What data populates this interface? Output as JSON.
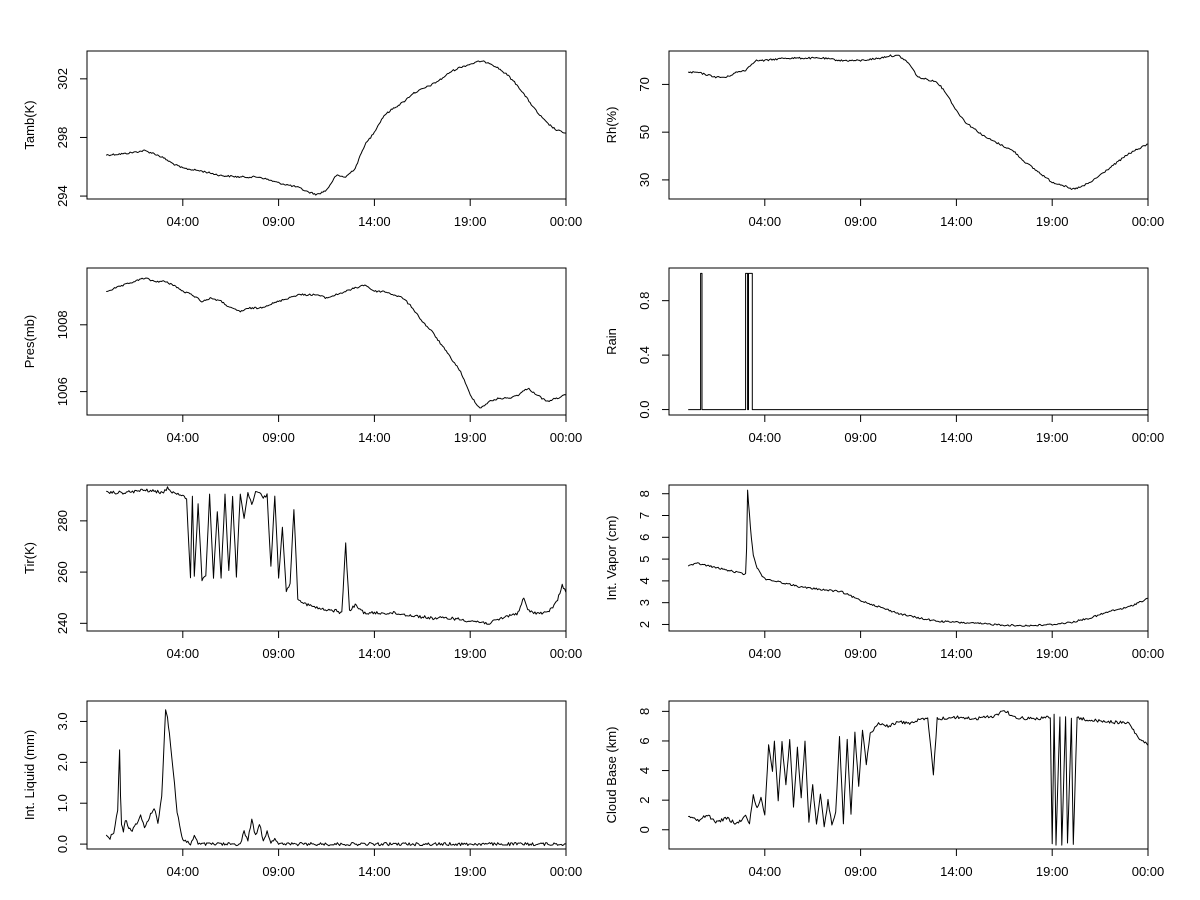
{
  "chart_data": [
    {
      "type": "line",
      "ylabel": "Tamb(K)",
      "xlim": [
        -1,
        24
      ],
      "ylim": [
        293.8,
        303.9
      ],
      "yticks": [
        294,
        298,
        302
      ],
      "xticks": [
        {
          "x": 4,
          "label": "04:00"
        },
        {
          "x": 9,
          "label": "09:00"
        },
        {
          "x": 14,
          "label": "14:00"
        },
        {
          "x": 19,
          "label": "19:00"
        },
        {
          "x": 24,
          "label": "00:00"
        }
      ],
      "series": [
        {
          "style": "smooth",
          "x": [
            0,
            1,
            2,
            2.5,
            3,
            3.5,
            4,
            5,
            6,
            7,
            8,
            9,
            10,
            10.5,
            11,
            11.5,
            12,
            12.5,
            13,
            13.5,
            13.8,
            14,
            14.5,
            15,
            15.5,
            16,
            16.5,
            17,
            17.5,
            18,
            18.5,
            19,
            19.5,
            20,
            20.5,
            21,
            21.5,
            22,
            22.5,
            23,
            23.5,
            24
          ],
          "y": [
            296.8,
            296.9,
            297.1,
            296.9,
            296.6,
            296.2,
            295.9,
            295.7,
            295.4,
            295.3,
            295.3,
            294.9,
            294.6,
            294.3,
            294.1,
            294.4,
            295.4,
            295.3,
            295.9,
            297.5,
            298.0,
            298.4,
            299.5,
            300.0,
            300.4,
            301.0,
            301.3,
            301.6,
            302.0,
            302.5,
            302.8,
            303.0,
            303.2,
            303.1,
            302.7,
            302.2,
            301.5,
            300.6,
            299.7,
            299.0,
            298.5,
            298.3
          ]
        }
      ]
    },
    {
      "type": "line",
      "ylabel": "Rh(%)",
      "xlim": [
        -1,
        24
      ],
      "ylim": [
        22,
        84
      ],
      "yticks": [
        30,
        50,
        70
      ],
      "xticks": [
        {
          "x": 4,
          "label": "04:00"
        },
        {
          "x": 9,
          "label": "09:00"
        },
        {
          "x": 14,
          "label": "14:00"
        },
        {
          "x": 19,
          "label": "19:00"
        },
        {
          "x": 24,
          "label": "00:00"
        }
      ],
      "series": [
        {
          "style": "smooth",
          "x": [
            0,
            0.5,
            1,
            1.5,
            2,
            2.5,
            3,
            3.5,
            4,
            5,
            6,
            7,
            8,
            9,
            10,
            10.5,
            11,
            11.5,
            12,
            12.5,
            13,
            13.5,
            14,
            14.5,
            15,
            15.5,
            16,
            16.5,
            17,
            17.5,
            18,
            18.5,
            19,
            19.5,
            20,
            20.5,
            21,
            21.5,
            22,
            22.5,
            23,
            23.5,
            24
          ],
          "y": [
            75,
            75,
            74,
            73,
            73,
            75,
            76,
            80,
            80,
            81,
            81,
            81,
            80,
            80,
            81,
            82,
            82,
            79,
            73,
            72,
            71,
            66,
            59,
            54,
            51,
            48,
            46,
            44,
            42,
            38,
            35,
            32,
            29,
            28,
            26,
            27,
            29,
            32,
            35,
            38,
            41,
            43,
            45
          ]
        }
      ]
    },
    {
      "type": "line",
      "ylabel": "Pres(mb)",
      "xlim": [
        -1,
        24
      ],
      "ylim": [
        1005.3,
        1009.7
      ],
      "yticks": [
        1006,
        1008
      ],
      "xticks": [
        {
          "x": 4,
          "label": "04:00"
        },
        {
          "x": 9,
          "label": "09:00"
        },
        {
          "x": 14,
          "label": "14:00"
        },
        {
          "x": 19,
          "label": "19:00"
        },
        {
          "x": 24,
          "label": "00:00"
        }
      ],
      "series": [
        {
          "style": "smooth",
          "x": [
            0,
            0.5,
            1,
            1.5,
            2,
            2.5,
            3,
            3.5,
            4,
            4.5,
            5,
            5.5,
            6,
            6.5,
            7,
            7.5,
            8,
            8.5,
            9,
            9.5,
            10,
            10.5,
            11,
            11.5,
            12,
            12.5,
            13,
            13.5,
            14,
            14.5,
            15,
            15.5,
            16,
            16.5,
            17,
            17.5,
            18,
            18.5,
            19,
            19.5,
            20,
            20.5,
            21,
            21.5,
            22,
            22.5,
            23,
            23.5,
            24
          ],
          "y": [
            1009.0,
            1009.1,
            1009.2,
            1009.3,
            1009.4,
            1009.3,
            1009.3,
            1009.2,
            1009.0,
            1008.9,
            1008.7,
            1008.8,
            1008.7,
            1008.5,
            1008.4,
            1008.5,
            1008.5,
            1008.6,
            1008.7,
            1008.8,
            1008.9,
            1008.9,
            1008.9,
            1008.8,
            1008.9,
            1009.0,
            1009.1,
            1009.2,
            1009.0,
            1009.0,
            1008.9,
            1008.8,
            1008.5,
            1008.1,
            1007.8,
            1007.4,
            1007.0,
            1006.6,
            1005.9,
            1005.5,
            1005.7,
            1005.8,
            1005.8,
            1005.9,
            1006.1,
            1005.9,
            1005.7,
            1005.8,
            1005.9
          ]
        }
      ]
    },
    {
      "type": "line",
      "ylabel": "Rain",
      "xlim": [
        -1,
        24
      ],
      "ylim": [
        -0.04,
        1.04
      ],
      "yticks": [
        0.0,
        0.4,
        0.8
      ],
      "ytick_labels": [
        "0.0",
        "0.4",
        "0.8"
      ],
      "xticks": [
        {
          "x": 4,
          "label": "04:00"
        },
        {
          "x": 9,
          "label": "09:00"
        },
        {
          "x": 14,
          "label": "14:00"
        },
        {
          "x": 19,
          "label": "19:00"
        },
        {
          "x": 24,
          "label": "00:00"
        }
      ],
      "series": [
        {
          "style": "step",
          "x": [
            0,
            0.65,
            0.65,
            0.72,
            0.72,
            3.0,
            3.0,
            3.1,
            3.1,
            3.15,
            3.15,
            3.35,
            3.35,
            3.45,
            3.45,
            24
          ],
          "y": [
            0,
            0,
            1,
            1,
            0,
            0,
            1,
            1,
            0,
            0,
            1,
            1,
            0,
            0,
            0,
            0
          ]
        }
      ]
    },
    {
      "type": "line",
      "ylabel": "Tir(K)",
      "xlim": [
        -1,
        24
      ],
      "ylim": [
        237,
        294
      ],
      "yticks": [
        240,
        260,
        280
      ],
      "xticks": [
        {
          "x": 4,
          "label": "04:00"
        },
        {
          "x": 9,
          "label": "09:00"
        },
        {
          "x": 14,
          "label": "14:00"
        },
        {
          "x": 19,
          "label": "19:00"
        },
        {
          "x": 24,
          "label": "00:00"
        }
      ],
      "series": [
        {
          "style": "jagged",
          "x": [
            0,
            1,
            2,
            3,
            3.2,
            3.5,
            4,
            4.2,
            4.4,
            4.5,
            4.6,
            4.8,
            5,
            5.2,
            5.4,
            5.6,
            5.8,
            6,
            6.2,
            6.4,
            6.6,
            6.8,
            7,
            7.2,
            7.4,
            7.6,
            7.8,
            8,
            8.2,
            8.4,
            8.6,
            8.8,
            9,
            9.2,
            9.4,
            9.6,
            9.8,
            10,
            10.3,
            10.6,
            11,
            11.5,
            12,
            12.3,
            12.5,
            12.7,
            13,
            13.5,
            14,
            15,
            16,
            17,
            18,
            19,
            20,
            21,
            21.5,
            21.8,
            22,
            22.5,
            23,
            23.5,
            23.8,
            24
          ],
          "y": [
            291,
            291,
            292,
            291,
            293,
            291,
            290,
            288,
            258,
            290,
            258,
            287,
            257,
            258,
            290,
            257,
            284,
            258,
            290,
            260,
            289,
            258,
            291,
            281,
            291,
            286,
            291,
            291,
            289,
            290,
            262,
            290,
            258,
            278,
            252,
            256,
            285,
            250,
            248,
            247,
            246,
            245,
            245,
            244,
            271,
            245,
            247,
            244,
            244,
            244,
            243,
            242,
            242,
            241,
            240,
            243,
            244,
            250,
            245,
            244,
            244,
            248,
            255,
            252
          ]
        }
      ]
    },
    {
      "type": "line",
      "ylabel": "Int. Vapor (cm)",
      "xlim": [
        -1,
        24
      ],
      "ylim": [
        1.7,
        8.4
      ],
      "yticks": [
        2,
        3,
        4,
        5,
        6,
        7,
        8
      ],
      "xticks": [
        {
          "x": 4,
          "label": "04:00"
        },
        {
          "x": 9,
          "label": "09:00"
        },
        {
          "x": 14,
          "label": "14:00"
        },
        {
          "x": 19,
          "label": "19:00"
        },
        {
          "x": 24,
          "label": "00:00"
        }
      ],
      "series": [
        {
          "style": "smooth",
          "x": [
            0,
            0.5,
            1,
            1.5,
            2,
            2.5,
            3,
            3.05,
            3.1,
            3.2,
            3.3,
            3.4,
            3.6,
            3.8,
            4,
            4.5,
            5,
            6,
            7,
            8,
            9,
            10,
            11,
            12,
            13,
            14,
            15,
            16,
            17,
            18,
            19,
            20,
            21,
            22,
            23,
            24
          ],
          "y": [
            4.7,
            4.8,
            4.7,
            4.6,
            4.5,
            4.4,
            4.3,
            5.5,
            8.2,
            7.0,
            6.0,
            5.2,
            4.6,
            4.3,
            4.1,
            4.0,
            3.9,
            3.7,
            3.6,
            3.5,
            3.1,
            2.8,
            2.5,
            2.3,
            2.15,
            2.1,
            2.05,
            2.0,
            1.95,
            1.95,
            2.0,
            2.1,
            2.3,
            2.6,
            2.8,
            3.2
          ]
        }
      ]
    },
    {
      "type": "line",
      "ylabel": "Int. Liquid (mm)",
      "xlim": [
        -1,
        24
      ],
      "ylim": [
        -0.12,
        3.5
      ],
      "yticks": [
        0.0,
        1.0,
        2.0,
        3.0
      ],
      "ytick_labels": [
        "0.0",
        "1.0",
        "2.0",
        "3.0"
      ],
      "xticks": [
        {
          "x": 4,
          "label": "04:00"
        },
        {
          "x": 9,
          "label": "09:00"
        },
        {
          "x": 14,
          "label": "14:00"
        },
        {
          "x": 19,
          "label": "19:00"
        },
        {
          "x": 24,
          "label": "00:00"
        }
      ],
      "series": [
        {
          "style": "jagged",
          "x": [
            0,
            0.2,
            0.4,
            0.6,
            0.7,
            0.75,
            0.8,
            0.9,
            1.0,
            1.3,
            1.6,
            1.8,
            2.0,
            2.2,
            2.5,
            2.7,
            2.9,
            3.0,
            3.1,
            3.2,
            3.3,
            3.5,
            3.7,
            3.9,
            4.0,
            4.2,
            4.4,
            4.6,
            4.8,
            5.0,
            6.0,
            7.0,
            7.2,
            7.4,
            7.6,
            7.8,
            8.0,
            8.2,
            8.4,
            8.6,
            8.8,
            9.0,
            10,
            14,
            19,
            24
          ],
          "y": [
            0.2,
            0.15,
            0.3,
            0.8,
            2.3,
            1.2,
            0.5,
            0.3,
            0.6,
            0.3,
            0.5,
            0.7,
            0.4,
            0.6,
            0.9,
            0.5,
            1.2,
            2.2,
            3.3,
            3.1,
            2.7,
            1.8,
            0.8,
            0.3,
            0.1,
            0.05,
            0.0,
            0.2,
            0.0,
            0.0,
            0.0,
            0.0,
            0.3,
            0.1,
            0.6,
            0.2,
            0.5,
            0.1,
            0.3,
            0.05,
            0.15,
            0.0,
            0.0,
            0.0,
            0.0,
            0.0
          ]
        }
      ]
    },
    {
      "type": "line",
      "ylabel": "Cloud Base (km)",
      "xlim": [
        -1,
        24
      ],
      "ylim": [
        -1.3,
        8.7
      ],
      "yticks": [
        0,
        2,
        4,
        6,
        8
      ],
      "xticks": [
        {
          "x": 4,
          "label": "04:00"
        },
        {
          "x": 9,
          "label": "09:00"
        },
        {
          "x": 14,
          "label": "14:00"
        },
        {
          "x": 19,
          "label": "19:00"
        },
        {
          "x": 24,
          "label": "00:00"
        }
      ],
      "series": [
        {
          "style": "jagged",
          "x": [
            0,
            0.5,
            1,
            1.5,
            2,
            2.5,
            3,
            3.2,
            3.4,
            3.6,
            3.8,
            4,
            4.2,
            4.4,
            4.5,
            4.7,
            4.9,
            5.1,
            5.3,
            5.5,
            5.7,
            5.9,
            6.1,
            6.3,
            6.5,
            6.7,
            6.9,
            7.1,
            7.3,
            7.5,
            7.7,
            7.9,
            8.1,
            8.3,
            8.5,
            8.7,
            8.9,
            9.1,
            9.3,
            9.5,
            9.8,
            10,
            10.5,
            11,
            11.5,
            12,
            12.5,
            12.8,
            13,
            14,
            15,
            16,
            16.5,
            17,
            18,
            18.9,
            19.0,
            19.1,
            19.2,
            19.4,
            19.5,
            19.7,
            19.8,
            20,
            20.1,
            20.3,
            20.5,
            21,
            22,
            23,
            23.5,
            24
          ],
          "y": [
            1.0,
            0.6,
            1.0,
            0.5,
            0.8,
            0.4,
            0.9,
            0.5,
            2.3,
            1.5,
            2.1,
            1.0,
            5.8,
            4.0,
            6.0,
            2.0,
            5.9,
            3.0,
            6.1,
            1.5,
            5.5,
            2.2,
            6.0,
            0.5,
            3.0,
            0.3,
            2.5,
            0.2,
            2.0,
            0.3,
            1.2,
            6.3,
            0.5,
            6.0,
            1.0,
            6.6,
            3.0,
            6.8,
            4.5,
            6.5,
            7.0,
            7.2,
            7.0,
            7.3,
            7.2,
            7.4,
            7.5,
            3.8,
            7.5,
            7.6,
            7.5,
            7.7,
            8.1,
            7.6,
            7.5,
            7.6,
            -1.0,
            7.8,
            -1.0,
            7.7,
            -1.0,
            7.6,
            -1.0,
            7.5,
            -1.0,
            7.6,
            7.5,
            7.4,
            7.3,
            7.2,
            6.2,
            5.7
          ]
        }
      ]
    }
  ]
}
